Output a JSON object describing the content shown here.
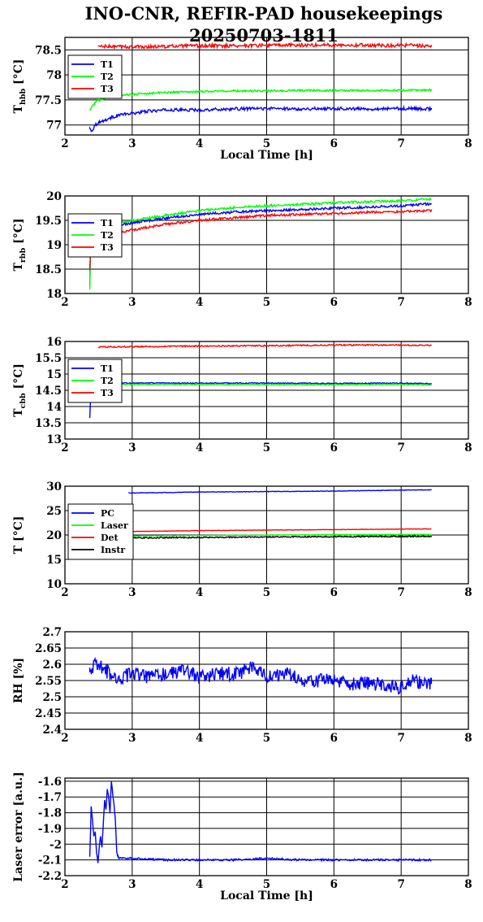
{
  "title_line1": "INO-CNR, REFIR-PAD housekeepings",
  "title_line2": "20250703-1811",
  "colors": {
    "blue": "#0000ff",
    "green": "#00ff00",
    "red": "#ff0000",
    "black": "#000000"
  },
  "chart_data": [
    {
      "type": "line",
      "ylabel": "T",
      "ylabel_sub": "hbb",
      "ylabel_unit": "[°C]",
      "xlabel": "Local Time [h]",
      "xlim": [
        2,
        8
      ],
      "ylim": [
        76.8,
        78.75
      ],
      "xticks": [
        2,
        3,
        4,
        5,
        6,
        7,
        8
      ],
      "yticks": [
        77,
        77.5,
        78,
        78.5
      ],
      "ytick_labels": [
        "77",
        "77.5",
        "78",
        "78.5"
      ],
      "grid": true,
      "legend_placement": "top-left",
      "series": [
        {
          "name": "T1",
          "color": "#0000ff",
          "x": [
            2.37,
            2.4,
            2.45,
            2.5,
            2.6,
            2.7,
            2.8,
            3.0,
            3.2,
            3.5,
            4.0,
            4.5,
            5.0,
            5.5,
            6.0,
            6.5,
            7.0,
            7.45
          ],
          "y": [
            76.93,
            76.88,
            77.0,
            77.05,
            77.1,
            77.15,
            77.2,
            77.23,
            77.27,
            77.3,
            77.3,
            77.32,
            77.33,
            77.32,
            77.33,
            77.32,
            77.33,
            77.32
          ],
          "noise": 0.03
        },
        {
          "name": "T2",
          "color": "#00ff00",
          "x": [
            2.37,
            2.45,
            2.55,
            2.7,
            2.9,
            3.2,
            3.5,
            4.0,
            4.5,
            5.0,
            5.5,
            6.0,
            6.5,
            7.0,
            7.45
          ],
          "y": [
            77.3,
            77.45,
            77.52,
            77.57,
            77.6,
            77.63,
            77.65,
            77.67,
            77.68,
            77.68,
            77.69,
            77.69,
            77.69,
            77.69,
            77.7
          ],
          "noise": 0.02
        },
        {
          "name": "T3",
          "color": "#ff0000",
          "x": [
            2.5,
            3.0,
            4.0,
            5.0,
            6.0,
            7.0,
            7.45
          ],
          "y": [
            78.57,
            78.56,
            78.58,
            78.59,
            78.6,
            78.59,
            78.58
          ],
          "noise": 0.035
        }
      ]
    },
    {
      "type": "line",
      "ylabel": "T",
      "ylabel_sub": "rbb",
      "ylabel_unit": "[°C]",
      "xlabel": "",
      "xlim": [
        2,
        8
      ],
      "ylim": [
        18,
        20
      ],
      "xticks": [
        2,
        3,
        4,
        5,
        6,
        7,
        8
      ],
      "yticks": [
        18,
        18.5,
        19,
        19.5,
        20
      ],
      "ytick_labels": [
        "18",
        "18.5",
        "19",
        "19.5",
        "20"
      ],
      "grid": true,
      "legend_placement": "top-left",
      "series": [
        {
          "name": "T1",
          "color": "#0000ff",
          "x": [
            2.37,
            2.38,
            2.39,
            2.4,
            2.5,
            2.7,
            3.0,
            3.5,
            4.0,
            4.5,
            5.0,
            5.5,
            6.0,
            6.5,
            7.0,
            7.45
          ],
          "y": [
            18.2,
            18.9,
            19.15,
            19.25,
            19.32,
            19.38,
            19.45,
            19.55,
            19.62,
            19.67,
            19.7,
            19.72,
            19.75,
            19.77,
            19.8,
            19.84
          ],
          "noise": 0.025
        },
        {
          "name": "T2",
          "color": "#00ff00",
          "x": [
            2.37,
            2.38,
            2.39,
            2.4,
            2.5,
            2.7,
            3.0,
            3.5,
            4.0,
            4.5,
            5.0,
            5.5,
            6.0,
            6.5,
            7.0,
            7.45
          ],
          "y": [
            18.1,
            18.95,
            19.2,
            19.3,
            19.35,
            19.42,
            19.5,
            19.6,
            19.7,
            19.76,
            19.8,
            19.83,
            19.86,
            19.88,
            19.9,
            19.94
          ],
          "noise": 0.025
        },
        {
          "name": "T3",
          "color": "#ff0000",
          "x": [
            2.37,
            2.38,
            2.39,
            2.4,
            2.5,
            2.7,
            3.0,
            3.5,
            4.0,
            4.5,
            5.0,
            5.5,
            6.0,
            6.5,
            7.0,
            7.45
          ],
          "y": [
            18.5,
            18.9,
            19.05,
            19.1,
            19.15,
            19.22,
            19.3,
            19.42,
            19.5,
            19.55,
            19.6,
            19.62,
            19.64,
            19.66,
            19.68,
            19.7
          ],
          "noise": 0.025
        }
      ]
    },
    {
      "type": "line",
      "ylabel": "T",
      "ylabel_sub": "cbb",
      "ylabel_unit": "[°C]",
      "xlabel": "",
      "xlim": [
        2,
        8
      ],
      "ylim": [
        13,
        16
      ],
      "xticks": [
        2,
        3,
        4,
        5,
        6,
        7,
        8
      ],
      "yticks": [
        13,
        13.5,
        14,
        14.5,
        15,
        15.5,
        16
      ],
      "ytick_labels": [
        "13",
        "13.5",
        "14",
        "14.5",
        "15",
        "15.5",
        "16"
      ],
      "grid": true,
      "legend_placement": "top-left",
      "series": [
        {
          "name": "T1",
          "color": "#0000ff",
          "x": [
            2.37,
            2.38,
            2.39,
            2.41,
            2.5,
            3.0,
            4.0,
            5.0,
            6.0,
            7.0,
            7.45
          ],
          "y": [
            13.65,
            14.2,
            14.55,
            14.7,
            14.72,
            14.72,
            14.72,
            14.72,
            14.71,
            14.72,
            14.7
          ],
          "noise": 0.015
        },
        {
          "name": "T2",
          "color": "#00ff00",
          "x": [
            2.37,
            2.39,
            2.41,
            2.5,
            3.0,
            4.0,
            5.0,
            6.0,
            7.0,
            7.45
          ],
          "y": [
            14.5,
            14.62,
            14.68,
            14.68,
            14.68,
            14.68,
            14.67,
            14.67,
            14.68,
            14.66
          ],
          "noise": 0.015
        },
        {
          "name": "T3",
          "color": "#ff0000",
          "x": [
            2.5,
            3.0,
            4.0,
            5.0,
            6.0,
            7.0,
            7.45
          ],
          "y": [
            15.83,
            15.84,
            15.86,
            15.87,
            15.89,
            15.89,
            15.88
          ],
          "noise": 0.02
        }
      ]
    },
    {
      "type": "line",
      "ylabel": "T [°C]",
      "ylabel_sub": "",
      "ylabel_unit": "",
      "xlabel": "",
      "xlim": [
        2,
        8
      ],
      "ylim": [
        10,
        30
      ],
      "xticks": [
        2,
        3,
        4,
        5,
        6,
        7,
        8
      ],
      "yticks": [
        10,
        15,
        20,
        25,
        30
      ],
      "ytick_labels": [
        "10",
        "15",
        "20",
        "25",
        "30"
      ],
      "grid": true,
      "legend_placement": "top-left",
      "series": [
        {
          "name": "PC",
          "color": "#0000ff",
          "x": [
            2.95,
            3.5,
            4.0,
            5.0,
            6.0,
            7.0,
            7.45
          ],
          "y": [
            28.6,
            28.7,
            28.8,
            28.9,
            29.0,
            29.2,
            29.25
          ],
          "noise": 0.05
        },
        {
          "name": "Laser",
          "color": "#00ff00",
          "x": [
            2.95,
            4.0,
            5.0,
            6.0,
            7.0,
            7.45
          ],
          "y": [
            19.8,
            19.9,
            20.0,
            20.05,
            20.1,
            20.1
          ],
          "noise": 0.04
        },
        {
          "name": "Det",
          "color": "#ff0000",
          "x": [
            2.95,
            4.0,
            5.0,
            6.0,
            7.0,
            7.45
          ],
          "y": [
            20.7,
            20.9,
            21.0,
            21.1,
            21.2,
            21.25
          ],
          "noise": 0.04
        },
        {
          "name": "Instr",
          "color": "#000000",
          "x": [
            2.95,
            4.0,
            5.0,
            6.0,
            7.0,
            7.45
          ],
          "y": [
            19.4,
            19.5,
            19.6,
            19.65,
            19.7,
            19.7
          ],
          "noise": 0.12
        }
      ]
    },
    {
      "type": "line",
      "ylabel": "RH [%]",
      "ylabel_sub": "",
      "ylabel_unit": "",
      "xlabel": "",
      "xlim": [
        2,
        8
      ],
      "ylim": [
        2.4,
        2.7
      ],
      "xticks": [
        2,
        3,
        4,
        5,
        6,
        7,
        8
      ],
      "yticks": [
        2.4,
        2.45,
        2.5,
        2.55,
        2.6,
        2.65,
        2.7
      ],
      "ytick_labels": [
        "2.4",
        "2.45",
        "2.5",
        "2.55",
        "2.6",
        "2.65",
        "2.7"
      ],
      "grid": true,
      "legend_placement": "none",
      "series": [
        {
          "name": "",
          "color": "#0000ff",
          "x": [
            2.37,
            2.5,
            2.6,
            2.8,
            3.0,
            3.2,
            3.5,
            3.8,
            4.0,
            4.3,
            4.6,
            4.8,
            5.0,
            5.3,
            5.6,
            6.0,
            6.3,
            6.6,
            7.0,
            7.2,
            7.45
          ],
          "y": [
            2.59,
            2.6,
            2.58,
            2.56,
            2.57,
            2.56,
            2.57,
            2.58,
            2.56,
            2.57,
            2.57,
            2.6,
            2.56,
            2.57,
            2.55,
            2.55,
            2.54,
            2.54,
            2.53,
            2.55,
            2.54
          ],
          "noise": 0.022
        }
      ]
    },
    {
      "type": "line",
      "ylabel": "Laser error [a.u.]",
      "ylabel_sub": "",
      "ylabel_unit": "",
      "xlabel": "Local Time [h]",
      "xlim": [
        2,
        8
      ],
      "ylim": [
        -2.2,
        -1.58
      ],
      "xticks": [
        2,
        3,
        4,
        5,
        6,
        7,
        8
      ],
      "yticks": [
        -2.2,
        -2.1,
        -2.0,
        -1.9,
        -1.8,
        -1.7,
        -1.6
      ],
      "ytick_labels": [
        "-2.2",
        "-2.1",
        "-2",
        "-1.9",
        "-1.8",
        "-1.7",
        "-1.6"
      ],
      "grid": true,
      "legend_placement": "none",
      "series": [
        {
          "name": "",
          "color": "#0000ff",
          "x": [
            2.37,
            2.39,
            2.41,
            2.43,
            2.45,
            2.47,
            2.49,
            2.51,
            2.53,
            2.55,
            2.57,
            2.59,
            2.61,
            2.63,
            2.65,
            2.67,
            2.69,
            2.71,
            2.73,
            2.75,
            2.77,
            2.79,
            2.81,
            2.85,
            3.0,
            3.5,
            4.0,
            4.5,
            5.0,
            5.5,
            6.0,
            6.5,
            7.0,
            7.45
          ],
          "y": [
            -2.08,
            -1.76,
            -1.85,
            -1.95,
            -1.92,
            -2.05,
            -2.12,
            -2.02,
            -1.95,
            -2.02,
            -1.88,
            -1.72,
            -1.78,
            -1.65,
            -1.7,
            -1.8,
            -1.6,
            -1.68,
            -1.75,
            -1.85,
            -2.05,
            -2.08,
            -2.09,
            -2.09,
            -2.09,
            -2.1,
            -2.1,
            -2.1,
            -2.09,
            -2.1,
            -2.1,
            -2.1,
            -2.1,
            -2.1
          ],
          "noise": 0.006
        }
      ]
    }
  ]
}
